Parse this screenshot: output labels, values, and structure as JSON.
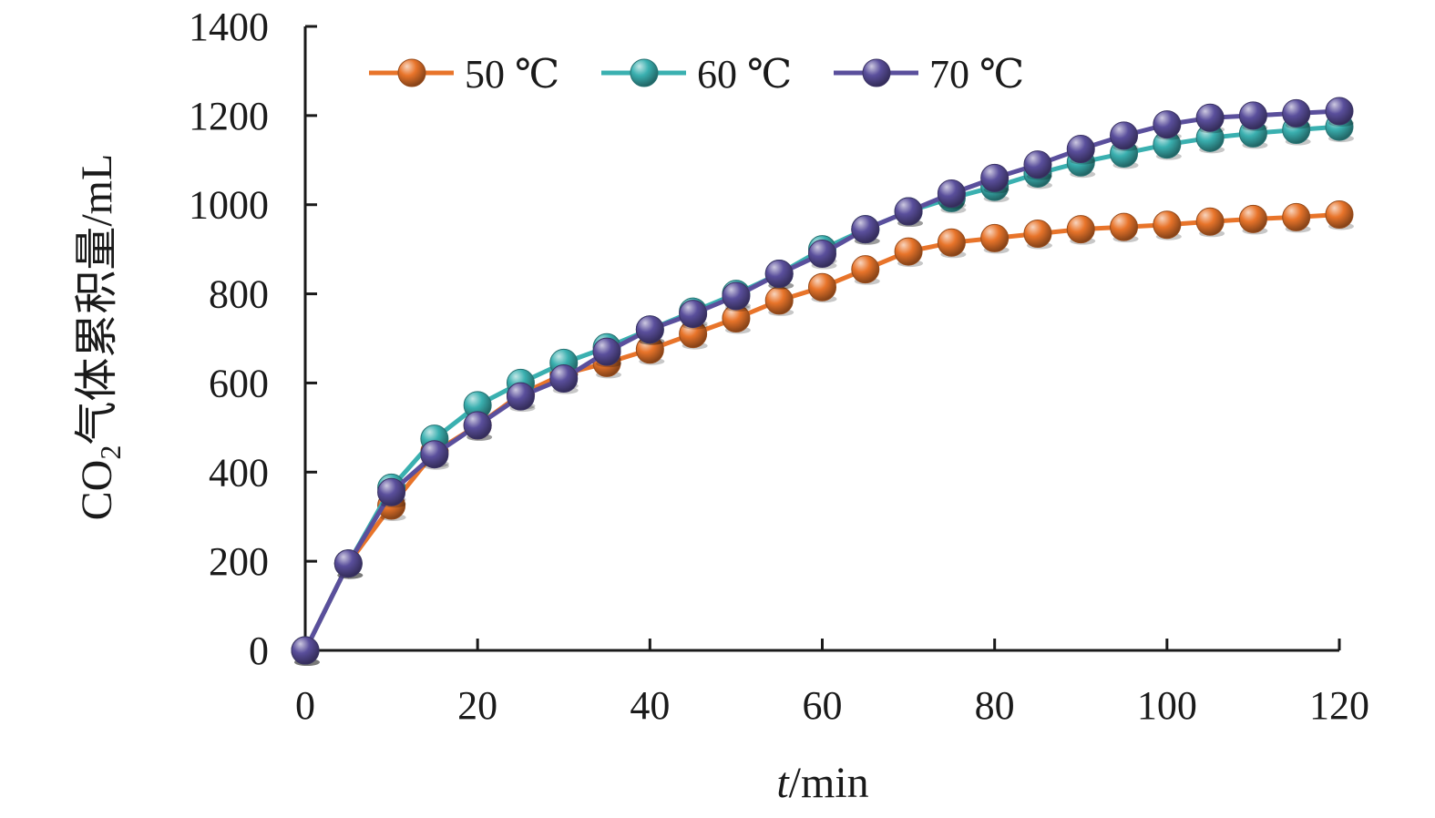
{
  "chart_data": {
    "type": "line",
    "title": "",
    "xlabel": {
      "italic": "t",
      "rest": "/min"
    },
    "ylabel": {
      "prefix": "CO",
      "subscript": "2",
      "rest": "气体累积量/mL"
    },
    "xlim": [
      0,
      120
    ],
    "ylim": [
      0,
      1400
    ],
    "x_ticks": [
      0,
      20,
      40,
      60,
      80,
      100,
      120
    ],
    "y_ticks": [
      0,
      200,
      400,
      600,
      800,
      1000,
      1200,
      1400
    ],
    "grid": false,
    "legend_position": "top-left",
    "x": [
      0,
      5,
      10,
      15,
      20,
      25,
      30,
      35,
      40,
      45,
      50,
      55,
      60,
      65,
      70,
      75,
      80,
      85,
      90,
      95,
      100,
      105,
      110,
      115,
      120
    ],
    "series": [
      {
        "name": "50 ℃",
        "color": "#e8742a",
        "values": [
          0,
          195,
          325,
          445,
          505,
          575,
          620,
          645,
          675,
          710,
          745,
          785,
          815,
          855,
          895,
          915,
          925,
          935,
          945,
          950,
          955,
          962,
          968,
          972,
          978
        ]
      },
      {
        "name": "60 ℃",
        "color": "#3ab0b0",
        "values": [
          0,
          195,
          365,
          475,
          550,
          600,
          645,
          680,
          720,
          760,
          800,
          845,
          900,
          945,
          985,
          1015,
          1040,
          1070,
          1095,
          1115,
          1135,
          1150,
          1160,
          1168,
          1175
        ]
      },
      {
        "name": "70 ℃",
        "color": "#5a4f9c",
        "values": [
          0,
          195,
          355,
          440,
          505,
          570,
          610,
          670,
          720,
          755,
          795,
          845,
          890,
          945,
          985,
          1025,
          1060,
          1090,
          1125,
          1155,
          1180,
          1195,
          1200,
          1205,
          1210
        ]
      }
    ]
  }
}
